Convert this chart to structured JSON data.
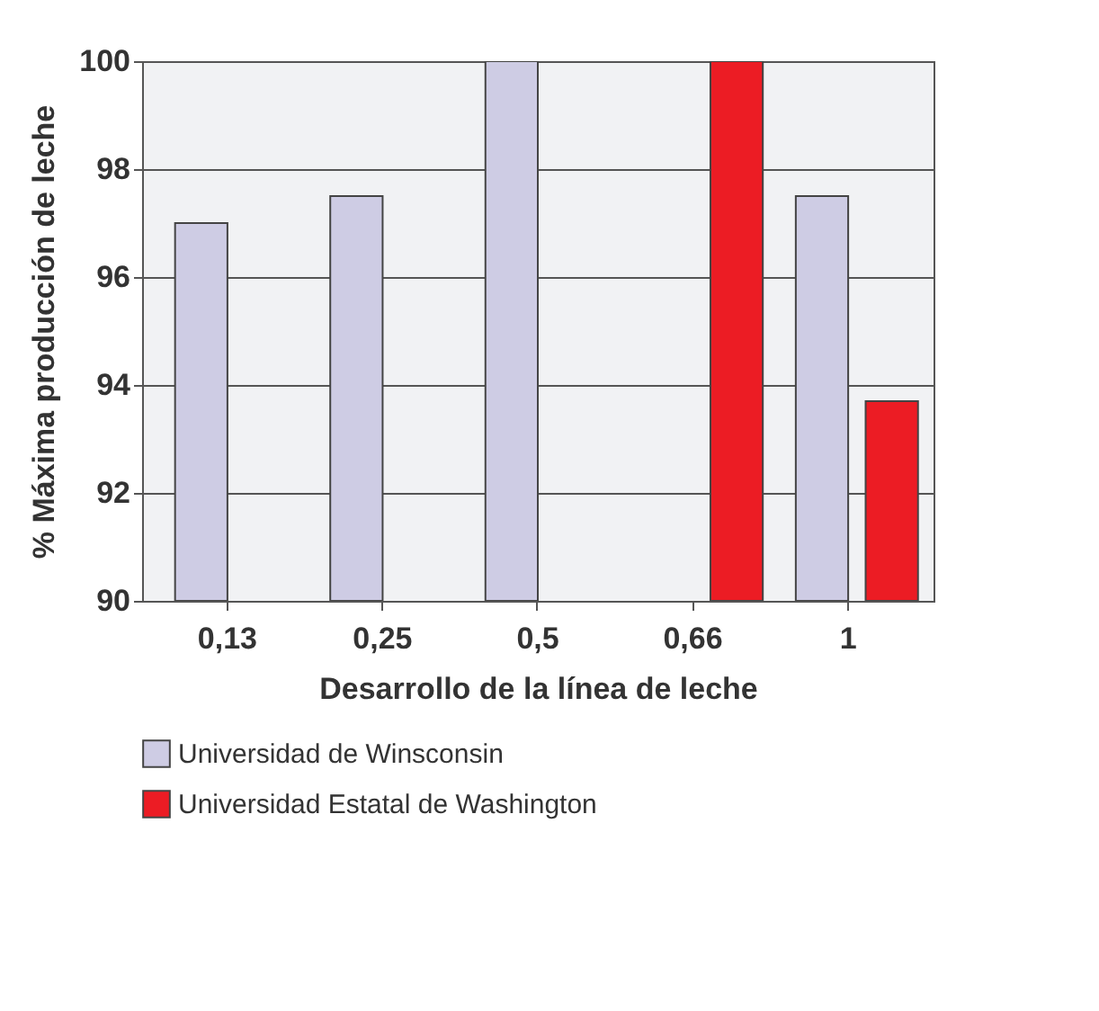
{
  "chart_data": {
    "type": "bar",
    "xlabel": "Desarrollo de la línea de leche",
    "ylabel": "% Máxima producción de leche",
    "categories": [
      "0,13",
      "0,25",
      "0,5",
      "0,66",
      "1"
    ],
    "series": [
      {
        "name": "Universidad de Winsconsin",
        "color": "#cecce4",
        "values": [
          97,
          97.5,
          100,
          null,
          97.5
        ]
      },
      {
        "name": "Universidad Estatal de Washington",
        "color": "#ec1c24",
        "values": [
          null,
          null,
          null,
          100,
          93.7
        ]
      }
    ],
    "ylim": [
      90,
      100
    ],
    "yticks": [
      90,
      92,
      94,
      96,
      98,
      100
    ],
    "grid": "y",
    "legend": "bottom"
  }
}
